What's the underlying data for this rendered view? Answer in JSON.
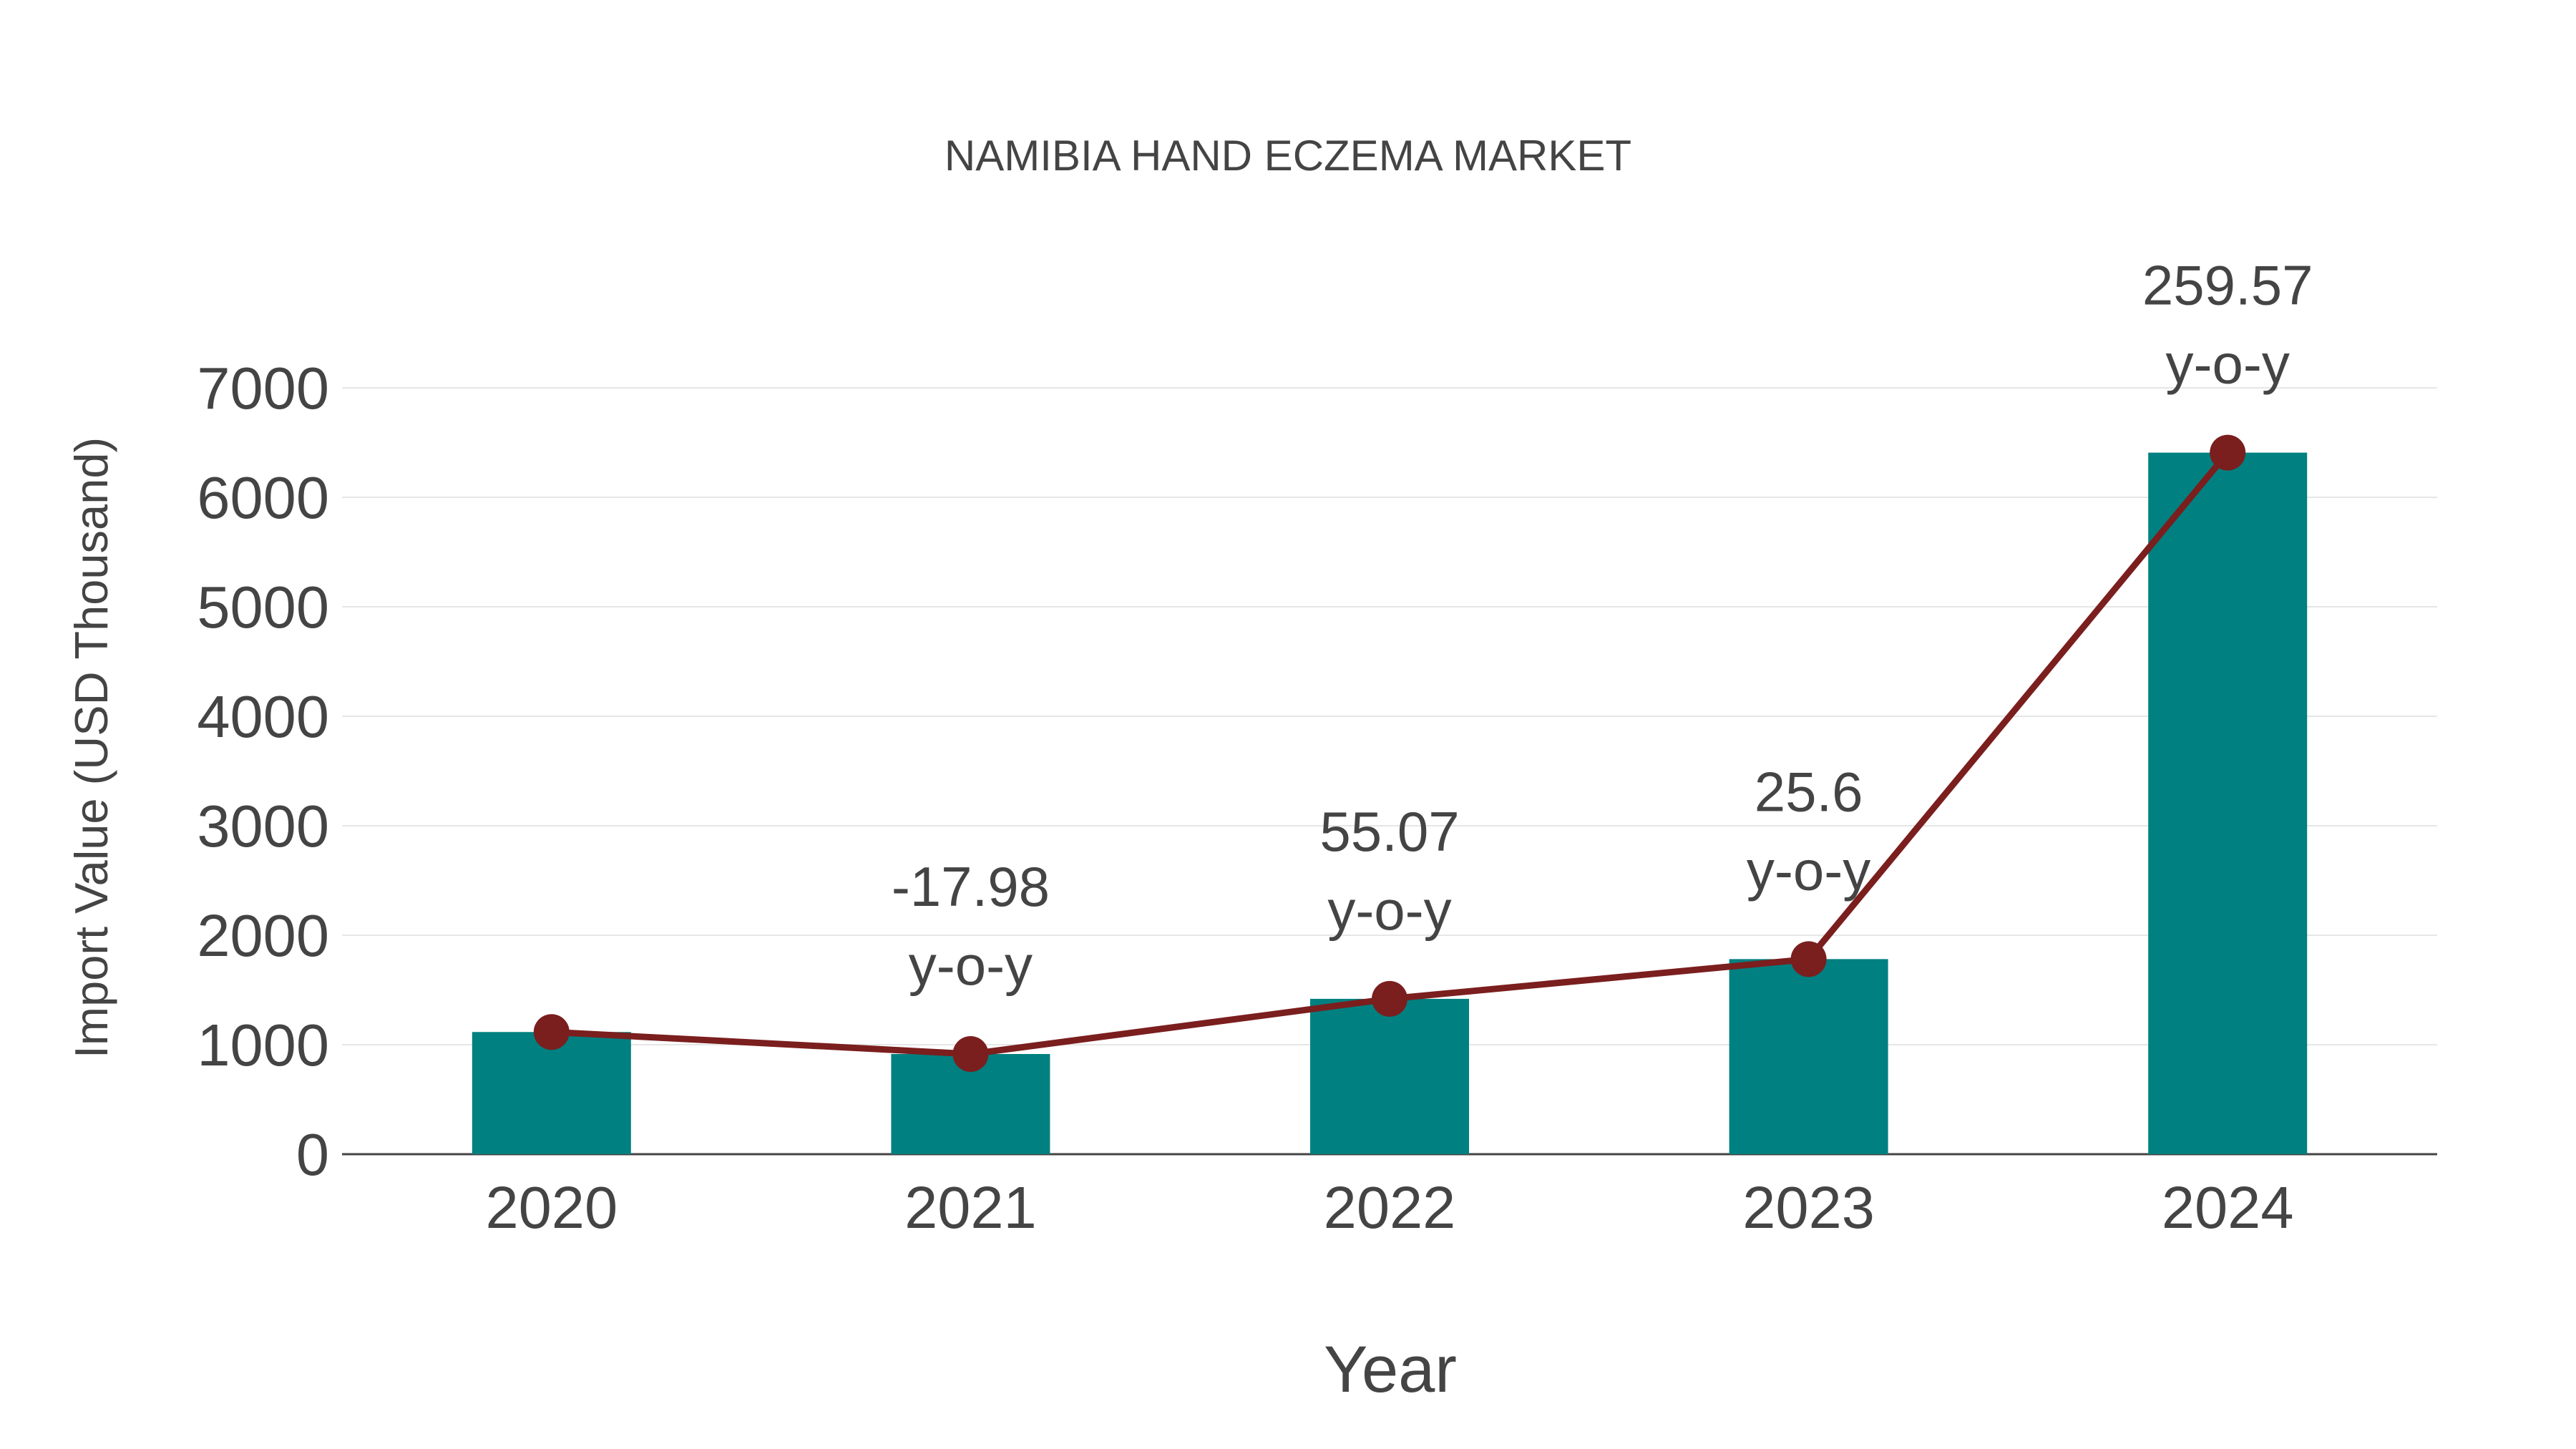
{
  "chart_data": {
    "type": "bar",
    "title": "NAMIBIA HAND ECZEMA MARKET",
    "xlabel": "Year",
    "ylabel": "Import Value (USD Thousand)",
    "categories": [
      "2020",
      "2021",
      "2022",
      "2023",
      "2024"
    ],
    "values": [
      1116,
      915,
      1419,
      1782,
      6408
    ],
    "line_values": [
      1116,
      915,
      1419,
      1782,
      6408
    ],
    "annotations": [
      {
        "index": 1,
        "value": "-17.98",
        "suffix": "y-o-y"
      },
      {
        "index": 2,
        "value": "55.07",
        "suffix": "y-o-y"
      },
      {
        "index": 3,
        "value": "25.6",
        "suffix": "y-o-y"
      },
      {
        "index": 4,
        "value": "259.57",
        "suffix": "y-o-y"
      }
    ],
    "ylim": [
      0,
      7000
    ],
    "yticks": [
      "0",
      "1000",
      "2000",
      "3000",
      "4000",
      "5000",
      "6000",
      "7000"
    ],
    "grid": true,
    "colors": {
      "bar": "#008080",
      "line": "#7b1e1e"
    }
  }
}
